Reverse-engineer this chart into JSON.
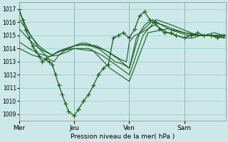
{
  "xlabel": "Pression niveau de la mer( hPa )",
  "ylim": [
    1008.5,
    1017.5
  ],
  "yticks": [
    1009,
    1010,
    1011,
    1012,
    1013,
    1014,
    1015,
    1016,
    1017
  ],
  "xtick_labels": [
    "Mer",
    "Jeu",
    "Ven",
    "Sam"
  ],
  "xtick_positions": [
    0.0,
    0.333,
    0.667,
    1.0
  ],
  "xlim": [
    0.0,
    1.25
  ],
  "bg_color": "#cce8e8",
  "grid_color": "#99cccc",
  "line_color": "#1a5c1a",
  "series": [
    {
      "x": [
        0.0,
        0.02,
        0.04,
        0.06,
        0.08,
        0.1,
        0.12,
        0.14,
        0.16,
        0.18,
        0.2,
        0.22,
        0.24,
        0.26,
        0.28,
        0.3,
        0.333,
        0.36,
        0.39,
        0.42,
        0.45,
        0.48,
        0.51,
        0.54,
        0.57,
        0.6,
        0.63,
        0.667,
        0.7,
        0.73,
        0.76,
        0.79,
        0.82,
        0.85,
        0.88,
        0.92,
        0.95,
        1.0,
        1.04,
        1.08,
        1.12,
        1.16,
        1.2,
        1.24
      ],
      "y": [
        1017.0,
        1016.2,
        1015.4,
        1014.8,
        1014.2,
        1013.8,
        1013.4,
        1013.0,
        1013.2,
        1013.0,
        1012.8,
        1012.0,
        1011.2,
        1010.5,
        1009.8,
        1009.2,
        1008.9,
        1009.4,
        1010.0,
        1010.5,
        1011.2,
        1012.0,
        1012.5,
        1012.8,
        1014.8,
        1015.0,
        1015.2,
        1014.8,
        1015.5,
        1016.5,
        1016.8,
        1016.2,
        1016.0,
        1015.5,
        1015.2,
        1015.2,
        1015.0,
        1014.8,
        1015.0,
        1015.2,
        1015.0,
        1015.0,
        1014.8,
        1015.0
      ],
      "marker": true
    },
    {
      "x": [
        0.0,
        0.03,
        0.06,
        0.09,
        0.12,
        0.15,
        0.18,
        0.21,
        0.24,
        0.27,
        0.3,
        0.333,
        0.37,
        0.41,
        0.45,
        0.49,
        0.53,
        0.57,
        0.61,
        0.65,
        0.667,
        0.7,
        0.74,
        0.78,
        0.82,
        0.86,
        0.9,
        0.95,
        1.0,
        1.05,
        1.1,
        1.15,
        1.2,
        1.25
      ],
      "y": [
        1016.8,
        1016.0,
        1015.2,
        1014.6,
        1014.0,
        1013.6,
        1013.2,
        1013.0,
        1013.5,
        1013.8,
        1014.0,
        1014.2,
        1014.4,
        1014.4,
        1014.2,
        1014.0,
        1013.8,
        1013.5,
        1013.2,
        1013.0,
        1014.5,
        1015.0,
        1015.2,
        1015.5,
        1015.8,
        1015.5,
        1015.2,
        1015.0,
        1014.8,
        1014.8,
        1015.0,
        1015.0,
        1015.0,
        1014.8
      ],
      "marker": false
    },
    {
      "x": [
        0.0,
        0.04,
        0.08,
        0.12,
        0.16,
        0.2,
        0.24,
        0.28,
        0.333,
        0.38,
        0.43,
        0.48,
        0.53,
        0.58,
        0.63,
        0.667,
        0.71,
        0.76,
        0.81,
        0.86,
        0.92,
        0.97,
        1.02,
        1.07,
        1.12,
        1.18,
        1.24
      ],
      "y": [
        1016.2,
        1015.5,
        1014.8,
        1014.2,
        1013.8,
        1013.5,
        1013.8,
        1014.0,
        1014.2,
        1014.3,
        1014.2,
        1014.0,
        1013.5,
        1013.0,
        1012.8,
        1012.5,
        1014.8,
        1015.8,
        1016.2,
        1015.8,
        1015.4,
        1015.2,
        1015.0,
        1015.0,
        1015.0,
        1015.2,
        1015.0
      ],
      "marker": false
    },
    {
      "x": [
        0.0,
        0.05,
        0.1,
        0.15,
        0.2,
        0.25,
        0.3,
        0.333,
        0.4,
        0.47,
        0.53,
        0.6,
        0.667,
        0.73,
        0.8,
        0.87,
        0.93,
        1.0,
        1.07,
        1.13,
        1.2,
        1.25
      ],
      "y": [
        1015.5,
        1014.8,
        1014.2,
        1013.8,
        1013.5,
        1013.8,
        1014.0,
        1014.2,
        1014.3,
        1014.2,
        1013.8,
        1013.2,
        1012.5,
        1015.2,
        1016.0,
        1015.8,
        1015.5,
        1015.2,
        1015.0,
        1015.0,
        1015.0,
        1015.0
      ],
      "marker": false
    },
    {
      "x": [
        0.0,
        0.06,
        0.12,
        0.18,
        0.24,
        0.3,
        0.333,
        0.42,
        0.5,
        0.58,
        0.667,
        0.75,
        0.83,
        0.92,
        1.0,
        1.08,
        1.16,
        1.24
      ],
      "y": [
        1014.5,
        1014.0,
        1013.6,
        1013.4,
        1013.5,
        1013.8,
        1014.0,
        1014.0,
        1013.5,
        1012.8,
        1012.0,
        1015.0,
        1016.2,
        1015.8,
        1015.4,
        1015.0,
        1015.0,
        1014.8
      ],
      "marker": false
    },
    {
      "x": [
        0.0,
        0.08,
        0.16,
        0.24,
        0.333,
        0.45,
        0.55,
        0.667,
        0.78,
        0.9,
        1.0,
        1.1,
        1.2
      ],
      "y": [
        1014.0,
        1013.5,
        1013.2,
        1013.8,
        1014.0,
        1013.8,
        1012.5,
        1011.5,
        1015.2,
        1015.5,
        1015.2,
        1015.0,
        1015.0
      ],
      "marker": false
    }
  ]
}
